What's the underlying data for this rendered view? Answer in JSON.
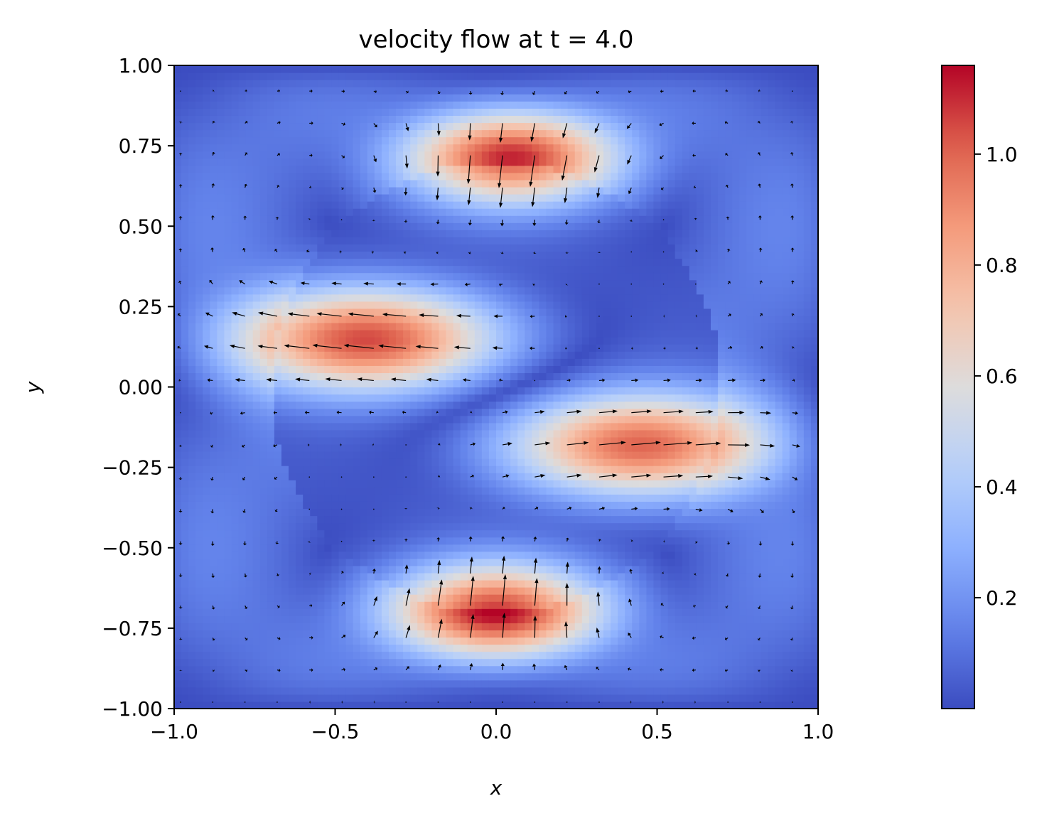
{
  "chart_data": {
    "type": "heatmap",
    "subtype": "heatmap-with-quiver",
    "title": "velocity flow at t = 4.0",
    "xlabel": "x",
    "ylabel": "y",
    "xlim": [
      -1.0,
      1.0
    ],
    "ylim": [
      -1.0,
      1.0
    ],
    "x_ticks": [
      "−1.0",
      "−0.5",
      "0.0",
      "0.5",
      "1.0"
    ],
    "x_tick_values": [
      -1.0,
      -0.5,
      0.0,
      0.5,
      1.0
    ],
    "y_ticks": [
      "1.00",
      "0.75",
      "0.50",
      "0.25",
      "0.00",
      "−0.25",
      "−0.50",
      "−0.75",
      "−1.00"
    ],
    "y_tick_values": [
      1.0,
      0.75,
      0.5,
      0.25,
      0.0,
      -0.25,
      -0.5,
      -0.75,
      -1.0
    ],
    "colormap": "coolwarm",
    "colorbar": {
      "range": [
        0.0,
        1.16
      ],
      "ticks": [
        "0.2",
        "0.4",
        "0.6",
        "0.8",
        "1.0"
      ],
      "tick_values": [
        0.2,
        0.4,
        0.6,
        0.8,
        1.0
      ],
      "low_color": "#3b4cc0",
      "mid_color": "#dddcdc",
      "high_color": "#b40426"
    },
    "grid": false,
    "field": {
      "description_of_speed_maxima": "two horizontal jets and two vertical jets forming a rotating pattern",
      "blobs": [
        {
          "x": 0.05,
          "y": 0.72,
          "peak": 1.0
        },
        {
          "x": 0.0,
          "y": -0.7,
          "peak": 1.05
        },
        {
          "x": -0.4,
          "y": 0.15,
          "peak": 1.0
        },
        {
          "x": 0.45,
          "y": -0.18,
          "peak": 0.95
        }
      ],
      "arrow_color": "#000000",
      "arrow_grid_step": 0.1
    }
  }
}
